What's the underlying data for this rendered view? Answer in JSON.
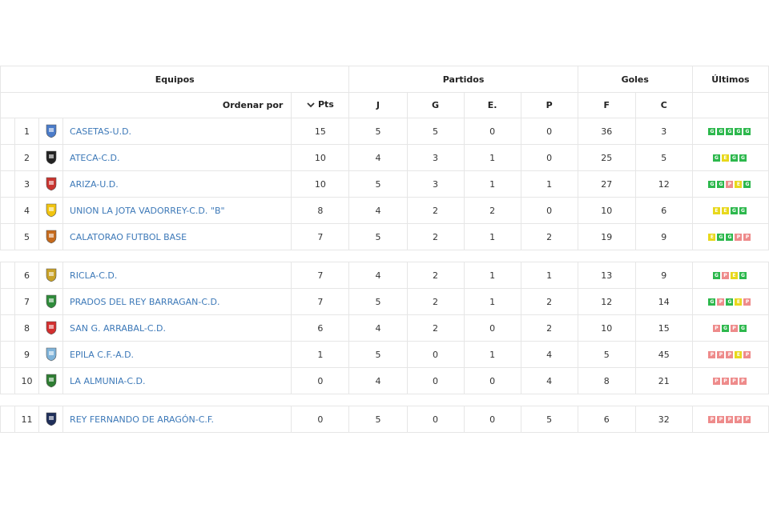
{
  "header": {
    "teams_label": "Equipos",
    "matches_label": "Partidos",
    "goals_label": "Goles",
    "last_label": "Últimos",
    "sort_label": "Ordenar por",
    "col_pts": "Pts",
    "col_j": "J",
    "col_g": "G",
    "col_e": "E.",
    "col_p": "P",
    "col_f": "F",
    "col_c": "C"
  },
  "colors": {
    "win": "#2db84d",
    "draw": "#e8d81c",
    "loss": "#ee8b8b",
    "link": "#3d79b8"
  },
  "rows": [
    {
      "pos": "1",
      "team": "CASETAS-U.D.",
      "pts": "15",
      "j": "5",
      "g": "5",
      "e": "0",
      "p": "0",
      "f": "36",
      "c": "3",
      "last": [
        "G",
        "G",
        "G",
        "G",
        "G"
      ],
      "logo": "blue"
    },
    {
      "pos": "2",
      "team": "ATECA-C.D.",
      "pts": "10",
      "j": "4",
      "g": "3",
      "e": "1",
      "p": "0",
      "f": "25",
      "c": "5",
      "last": [
        "G",
        "E",
        "G",
        "G"
      ],
      "logo": "black"
    },
    {
      "pos": "3",
      "team": "ARIZA-U.D.",
      "pts": "10",
      "j": "5",
      "g": "3",
      "e": "1",
      "p": "1",
      "f": "27",
      "c": "12",
      "last": [
        "G",
        "G",
        "P",
        "E",
        "G"
      ],
      "logo": "red"
    },
    {
      "pos": "4",
      "team": "UNION LA JOTA VADORREY-C.D. \"B\"",
      "pts": "8",
      "j": "4",
      "g": "2",
      "e": "2",
      "p": "0",
      "f": "10",
      "c": "6",
      "last": [
        "E",
        "E",
        "G",
        "G"
      ],
      "logo": "yellow"
    },
    {
      "pos": "5",
      "team": "CALATORAO FUTBOL BASE",
      "pts": "7",
      "j": "5",
      "g": "2",
      "e": "1",
      "p": "2",
      "f": "19",
      "c": "9",
      "last": [
        "E",
        "G",
        "G",
        "P",
        "P"
      ],
      "logo": "orange"
    },
    {
      "pos": "6",
      "team": "RICLA-C.D.",
      "pts": "7",
      "j": "4",
      "g": "2",
      "e": "1",
      "p": "1",
      "f": "13",
      "c": "9",
      "last": [
        "G",
        "P",
        "E",
        "G"
      ],
      "logo": "gold"
    },
    {
      "pos": "7",
      "team": "PRADOS DEL REY BARRAGAN-C.D.",
      "pts": "7",
      "j": "5",
      "g": "2",
      "e": "1",
      "p": "2",
      "f": "12",
      "c": "14",
      "last": [
        "G",
        "P",
        "G",
        "E",
        "P"
      ],
      "logo": "green"
    },
    {
      "pos": "8",
      "team": "SAN G. ARRABAL-C.D.",
      "pts": "6",
      "j": "4",
      "g": "2",
      "e": "0",
      "p": "2",
      "f": "10",
      "c": "15",
      "last": [
        "P",
        "G",
        "P",
        "G"
      ],
      "logo": "redbox"
    },
    {
      "pos": "9",
      "team": "EPILA C.F.-A.D.",
      "pts": "1",
      "j": "5",
      "g": "0",
      "e": "1",
      "p": "4",
      "f": "5",
      "c": "45",
      "last": [
        "P",
        "P",
        "P",
        "E",
        "P"
      ],
      "logo": "lightblue"
    },
    {
      "pos": "10",
      "team": "LA ALMUNIA-C.D.",
      "pts": "0",
      "j": "4",
      "g": "0",
      "e": "0",
      "p": "4",
      "f": "8",
      "c": "21",
      "last": [
        "P",
        "P",
        "P",
        "P"
      ],
      "logo": "greenshield"
    },
    {
      "pos": "11",
      "team": "REY FERNANDO DE ARAGÓN-C.F.",
      "pts": "0",
      "j": "5",
      "g": "0",
      "e": "0",
      "p": "5",
      "f": "6",
      "c": "32",
      "last": [
        "P",
        "P",
        "P",
        "P",
        "P"
      ],
      "logo": "navy"
    }
  ]
}
